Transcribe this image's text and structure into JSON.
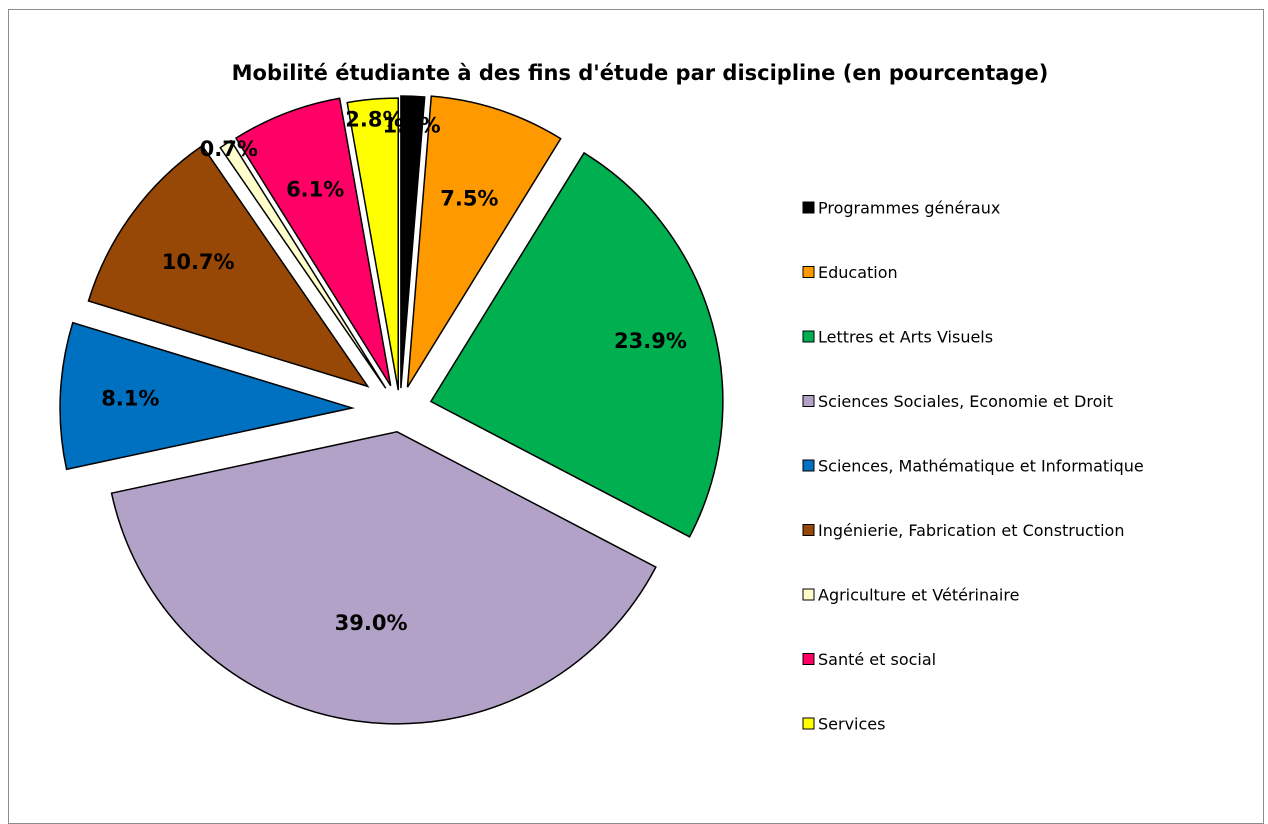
{
  "chart_data": {
    "type": "pie",
    "title": "Mobilité étudiante à des fins d'étude par discipline (en pourcentage)",
    "legend_position": "right",
    "exploded": true,
    "slices": [
      {
        "label": "Programmes généraux",
        "value": 1.3,
        "value_label": "1.3%",
        "color": "#000000"
      },
      {
        "label": "Education",
        "value": 7.5,
        "value_label": "7.5%",
        "color": "#ff9900"
      },
      {
        "label": "Lettres et Arts Visuels",
        "value": 23.9,
        "value_label": "23.9%",
        "color": "#00b050"
      },
      {
        "label": "Sciences Sociales, Economie et Droit",
        "value": 39.0,
        "value_label": "39.0%",
        "color": "#b3a2c7"
      },
      {
        "label": "Sciences, Mathématique et Informatique",
        "value": 8.1,
        "value_label": "8.1%",
        "color": "#0070c0"
      },
      {
        "label": "Ingénierie, Fabrication et Construction",
        "value": 10.7,
        "value_label": "10.7%",
        "color": "#974706"
      },
      {
        "label": "Agriculture et Vétérinaire",
        "value": 0.7,
        "value_label": "0.7%",
        "color": "#ffffcc"
      },
      {
        "label": "Santé et social",
        "value": 6.1,
        "value_label": "6.1%",
        "color": "#ff0066"
      },
      {
        "label": "Services",
        "value": 2.8,
        "value_label": "2.8%",
        "color": "#ffff00"
      }
    ]
  }
}
